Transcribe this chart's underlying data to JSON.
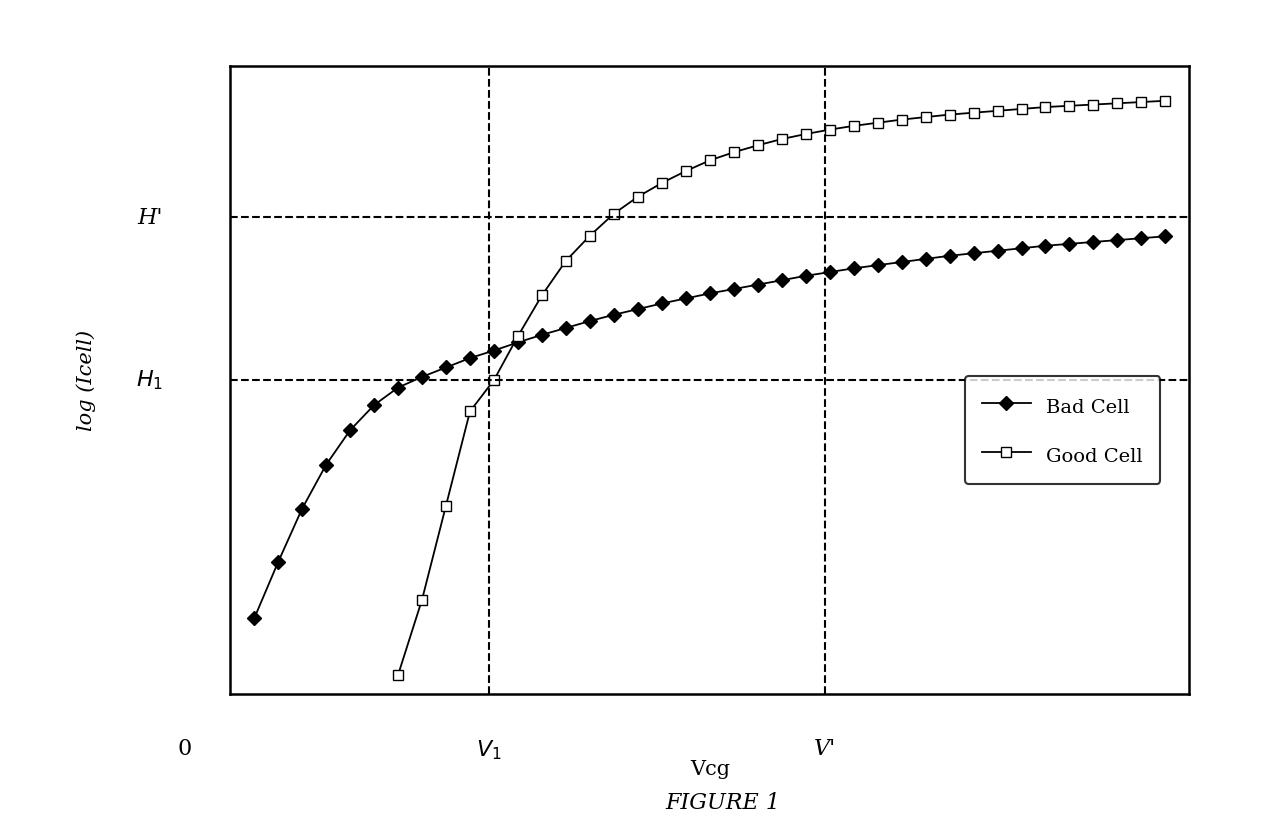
{
  "title": "FIGURE 1",
  "ylabel": "log (Icell)",
  "xlabel": "Vcg",
  "xlim": [
    0,
    10
  ],
  "ylim": [
    0,
    10
  ],
  "v1_x": 2.7,
  "vprime_x": 6.2,
  "H1_y": 5.0,
  "Hprime_y": 7.6,
  "bad_cell_x": [
    0.25,
    0.5,
    0.75,
    1.0,
    1.25,
    1.5,
    1.75,
    2.0,
    2.25,
    2.5,
    2.75,
    3.0,
    3.25,
    3.5,
    3.75,
    4.0,
    4.25,
    4.5,
    4.75,
    5.0,
    5.25,
    5.5,
    5.75,
    6.0,
    6.25,
    6.5,
    6.75,
    7.0,
    7.25,
    7.5,
    7.75,
    8.0,
    8.25,
    8.5,
    8.75,
    9.0,
    9.25,
    9.5,
    9.75
  ],
  "bad_cell_y": [
    1.2,
    2.1,
    2.95,
    3.65,
    4.2,
    4.6,
    4.88,
    5.05,
    5.2,
    5.35,
    5.47,
    5.6,
    5.72,
    5.83,
    5.94,
    6.04,
    6.13,
    6.22,
    6.3,
    6.38,
    6.45,
    6.52,
    6.59,
    6.66,
    6.72,
    6.78,
    6.83,
    6.88,
    6.93,
    6.98,
    7.02,
    7.06,
    7.1,
    7.14,
    7.17,
    7.2,
    7.23,
    7.26,
    7.29
  ],
  "good_cell_x": [
    1.75,
    2.0,
    2.25,
    2.5,
    2.75,
    3.0,
    3.25,
    3.5,
    3.75,
    4.0,
    4.25,
    4.5,
    4.75,
    5.0,
    5.25,
    5.5,
    5.75,
    6.0,
    6.25,
    6.5,
    6.75,
    7.0,
    7.25,
    7.5,
    7.75,
    8.0,
    8.25,
    8.5,
    8.75,
    9.0,
    9.25,
    9.5,
    9.75
  ],
  "good_cell_y": [
    0.3,
    1.5,
    3.0,
    4.5,
    5.0,
    5.7,
    6.35,
    6.9,
    7.3,
    7.65,
    7.92,
    8.14,
    8.33,
    8.5,
    8.63,
    8.74,
    8.84,
    8.92,
    8.99,
    9.05,
    9.1,
    9.15,
    9.19,
    9.23,
    9.26,
    9.29,
    9.32,
    9.35,
    9.37,
    9.39,
    9.41,
    9.43,
    9.45
  ],
  "line_color": "#000000",
  "background_color": "#ffffff",
  "legend_bad": "Bad Cell",
  "legend_good": "Good Cell"
}
